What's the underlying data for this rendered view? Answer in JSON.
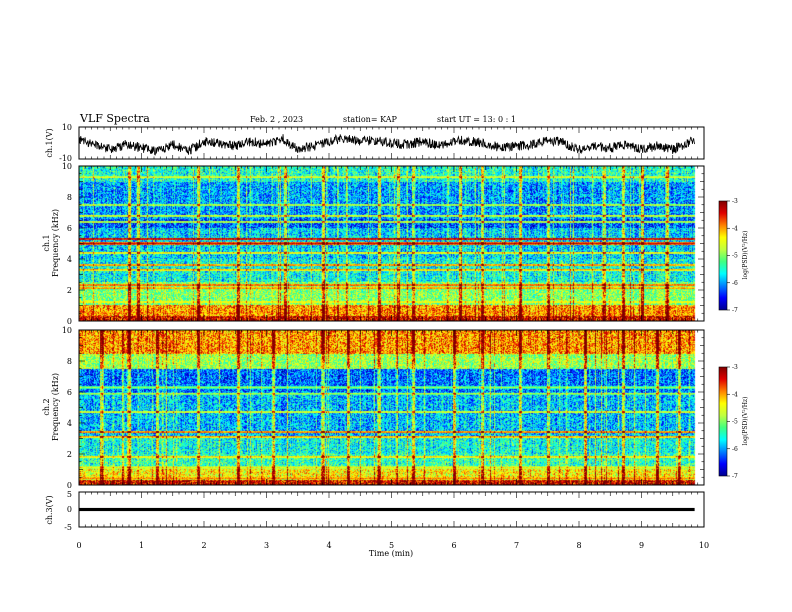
{
  "header": {
    "title": "VLF Spectra",
    "date": "Feb. 2 , 2023",
    "station": "station= KAP",
    "start": "start UT =  13: 0  : 1"
  },
  "colors": {
    "spectrogram_scale": [
      "#00008f",
      "#0000ff",
      "#0080ff",
      "#00ffff",
      "#40ff80",
      "#c0ff40",
      "#ffff00",
      "#ff8000",
      "#e00000",
      "#800000"
    ]
  },
  "chart_data": [
    {
      "id": "ch1-waveform",
      "type": "line",
      "ylabel": "ch.1(V)",
      "ylim": [
        -10,
        10
      ],
      "yticks": [
        "10",
        "-10"
      ],
      "xlim": [
        0,
        10
      ],
      "grid": false,
      "x": [
        0,
        0.25,
        0.5,
        0.75,
        1.0,
        1.25,
        1.5,
        1.75,
        2.0,
        2.25,
        2.5,
        2.75,
        3.0,
        3.25,
        3.5,
        3.75,
        4.0,
        4.25,
        4.5,
        4.75,
        5.0,
        5.25,
        5.5,
        5.75,
        6.0,
        6.25,
        6.5,
        6.75,
        7.0,
        7.25,
        7.5,
        7.75,
        8.0,
        8.25,
        8.5,
        8.75,
        9.0,
        9.25,
        9.5,
        9.75,
        9.85
      ],
      "y": [
        2,
        -1,
        -4,
        -1,
        -3,
        -5,
        -1,
        -5,
        1,
        0,
        -2,
        1,
        -1,
        3,
        -4,
        -2,
        1,
        3,
        1,
        2,
        0,
        -1,
        1,
        -2,
        2,
        1,
        0,
        -3,
        -2,
        -1,
        2,
        0,
        -4,
        -2,
        -3,
        -1,
        -4,
        -2,
        -4,
        0,
        2
      ],
      "noise_amplitude": 3
    },
    {
      "id": "ch1-spectrogram",
      "type": "heatmap",
      "ylabel": "ch.1\nFrequency (kHz)",
      "ylim": [
        0,
        10
      ],
      "yticks": [
        "0",
        "2",
        "4",
        "6",
        "8",
        "10"
      ],
      "xlim": [
        0,
        10
      ],
      "data_end_min": 9.85,
      "colorbar": {
        "label": "log(PSD)(V²/Hz)",
        "range": [
          -7,
          -3
        ],
        "ticks": [
          "-3",
          "-4",
          "-5",
          "-6",
          "-7"
        ]
      },
      "background_levels_by_kHz": [
        {
          "from": 0.0,
          "to": 0.3,
          "level": -3.4
        },
        {
          "from": 0.3,
          "to": 1.0,
          "level": -4.0
        },
        {
          "from": 1.0,
          "to": 2.5,
          "level": -5.0
        },
        {
          "from": 2.5,
          "to": 4.0,
          "level": -5.6
        },
        {
          "from": 4.0,
          "to": 6.0,
          "level": -5.8
        },
        {
          "from": 6.0,
          "to": 6.6,
          "level": -6.3
        },
        {
          "from": 6.6,
          "to": 9.0,
          "level": -6.0
        },
        {
          "from": 9.0,
          "to": 10.0,
          "level": -5.5
        }
      ],
      "emission_lines_kHz": [
        {
          "f": 0.5,
          "level": -4.0
        },
        {
          "f": 1.2,
          "level": -4.2
        },
        {
          "f": 2.1,
          "level": -3.8
        },
        {
          "f": 2.3,
          "level": -3.6
        },
        {
          "f": 3.3,
          "level": -4.0
        },
        {
          "f": 3.6,
          "level": -3.8
        },
        {
          "f": 4.4,
          "level": -4.2
        },
        {
          "f": 5.0,
          "level": -3.3
        },
        {
          "f": 5.3,
          "level": -3.2
        },
        {
          "f": 6.4,
          "level": -4.6
        },
        {
          "f": 6.8,
          "level": -4.5
        },
        {
          "f": 7.5,
          "level": -4.6
        },
        {
          "f": 9.3,
          "level": -4.4
        }
      ],
      "impulsive_events_min": [
        0.8,
        0.95,
        1.9,
        2.55,
        3.3,
        3.9,
        4.8,
        5.1,
        5.35,
        6.1,
        6.45,
        7.05,
        7.5,
        8.4,
        8.7,
        9.0,
        9.4
      ]
    },
    {
      "id": "ch2-spectrogram",
      "type": "heatmap",
      "ylabel": "ch.2\nFrequency (kHz)",
      "ylim": [
        0,
        10
      ],
      "yticks": [
        "0",
        "2",
        "4",
        "6",
        "8",
        "10"
      ],
      "xlim": [
        0,
        10
      ],
      "data_end_min": 9.85,
      "colorbar": {
        "label": "log(PSD)(V²/Hz)",
        "range": [
          -7,
          -3
        ],
        "ticks": [
          "-3",
          "-4",
          "-5",
          "-6",
          "-7"
        ]
      },
      "background_levels_by_kHz": [
        {
          "from": 0.0,
          "to": 0.3,
          "level": -3.4
        },
        {
          "from": 0.3,
          "to": 1.0,
          "level": -4.4
        },
        {
          "from": 1.0,
          "to": 2.0,
          "level": -5.4
        },
        {
          "from": 2.0,
          "to": 3.0,
          "level": -5.6
        },
        {
          "from": 3.0,
          "to": 6.0,
          "level": -5.9
        },
        {
          "from": 6.0,
          "to": 7.5,
          "level": -6.2
        },
        {
          "from": 7.5,
          "to": 8.5,
          "level": -4.9
        },
        {
          "from": 8.5,
          "to": 10.0,
          "level": -4.0
        }
      ],
      "emission_lines_kHz": [
        {
          "f": 0.4,
          "level": -3.8
        },
        {
          "f": 1.1,
          "level": -4.3
        },
        {
          "f": 1.8,
          "level": -4.1
        },
        {
          "f": 3.1,
          "level": -3.9
        },
        {
          "f": 3.4,
          "level": -3.7
        },
        {
          "f": 4.7,
          "level": -4.4
        },
        {
          "f": 5.9,
          "level": -4.7
        },
        {
          "f": 6.3,
          "level": -4.9
        }
      ],
      "impulsive_events_min": [
        0.35,
        0.8,
        1.25,
        1.9,
        2.55,
        3.1,
        3.9,
        4.3,
        4.8,
        5.35,
        6.0,
        6.45,
        7.05,
        7.5,
        8.1,
        8.7,
        9.25,
        9.6
      ]
    },
    {
      "id": "ch3-waveform",
      "type": "line",
      "ylabel": "ch.3(V)",
      "ylim": [
        -5,
        5
      ],
      "yticks": [
        "5",
        "0",
        "-5"
      ],
      "xlim": [
        0,
        10
      ],
      "xlabel": "Time  (min)",
      "xticks": [
        "0",
        "1",
        "2",
        "3",
        "4",
        "5",
        "6",
        "7",
        "8",
        "9",
        "10"
      ],
      "x": [
        0,
        9.85
      ],
      "y": [
        0,
        0
      ],
      "band_thickness_V": 0.9
    }
  ]
}
